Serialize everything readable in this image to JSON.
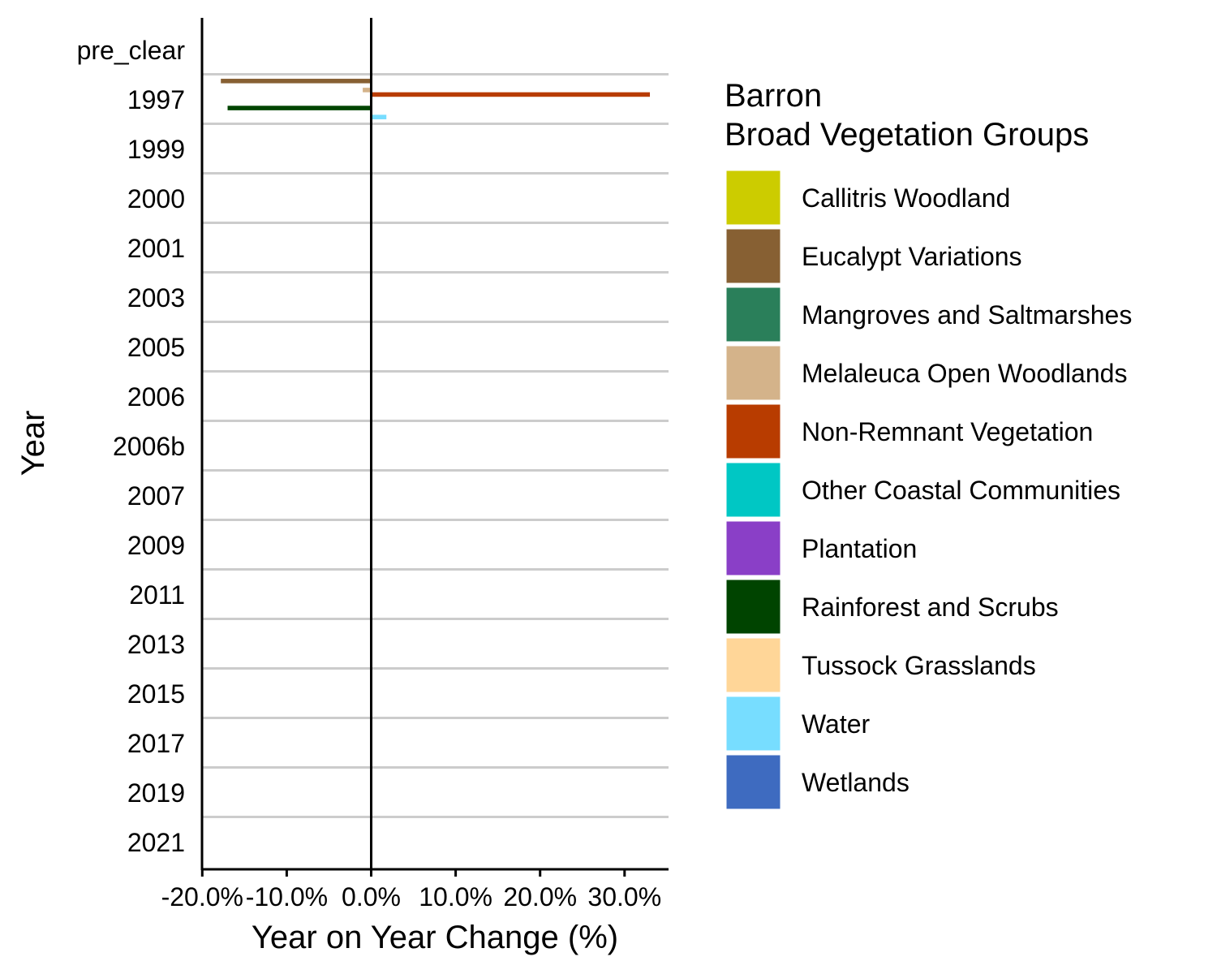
{
  "chart_data": {
    "type": "bar",
    "orientation": "horizontal",
    "ylabel": "Year",
    "xlabel": "Year on Year Change (%)",
    "categories": [
      "pre_clear",
      "1997",
      "1999",
      "2000",
      "2001",
      "2003",
      "2005",
      "2006",
      "2006b",
      "2007",
      "2009",
      "2011",
      "2013",
      "2015",
      "2017",
      "2019",
      "2021"
    ],
    "x_ticks": [
      "-20.0%",
      "-10.0%",
      "0.0%",
      "10.0%",
      "20.0%",
      "30.0%"
    ],
    "x_tick_values": [
      -20,
      -10,
      0,
      10,
      20,
      30
    ],
    "xlim": [
      -20.5,
      35.5
    ],
    "grid": "horizontal between categories",
    "legend": {
      "position": "right",
      "title_line1": "Barron",
      "title_line2": "Broad Vegetation Groups"
    },
    "series": [
      {
        "name": "Callitris Woodland",
        "color": "#CCCC00",
        "values": {}
      },
      {
        "name": "Eucalypt Variations",
        "color": "#876033",
        "values": {
          "1997": -17.8
        }
      },
      {
        "name": "Mangroves and Saltmarshes",
        "color": "#2A7F5A",
        "values": {}
      },
      {
        "name": "Melaleuca Open Woodlands",
        "color": "#D4B38A",
        "values": {
          "1997": -1.0
        }
      },
      {
        "name": "Non-Remnant Vegetation",
        "color": "#B83C00",
        "values": {
          "1997": 33.0
        }
      },
      {
        "name": "Other Coastal Communities",
        "color": "#00C7C4",
        "values": {}
      },
      {
        "name": "Plantation",
        "color": "#8A3FC7",
        "values": {}
      },
      {
        "name": "Rainforest and Scrubs",
        "color": "#004400",
        "values": {
          "1997": -17.0
        }
      },
      {
        "name": "Tussock Grasslands",
        "color": "#FFD698",
        "values": {}
      },
      {
        "name": "Water",
        "color": "#77DDFF",
        "values": {
          "1997": 1.8
        }
      },
      {
        "name": "Wetlands",
        "color": "#3E6BC0",
        "values": {}
      }
    ]
  }
}
